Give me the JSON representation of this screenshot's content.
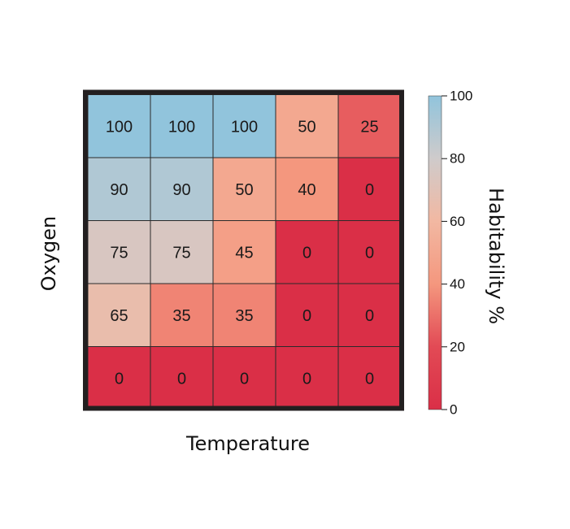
{
  "chart_data": {
    "type": "heatmap",
    "xlabel": "Temperature",
    "ylabel": "Oxygen",
    "colorbar": {
      "label": "Habitability %",
      "ticks": [
        "0",
        "20",
        "40",
        "60",
        "80",
        "100"
      ],
      "range": [
        0,
        100
      ],
      "colormap": [
        "#da2f47",
        "#f4977e",
        "#dcccc4",
        "#91c4dc"
      ]
    },
    "values": [
      [
        100,
        100,
        100,
        50,
        25
      ],
      [
        90,
        90,
        50,
        40,
        0
      ],
      [
        75,
        75,
        45,
        0,
        0
      ],
      [
        65,
        35,
        35,
        0,
        0
      ],
      [
        0,
        0,
        0,
        0,
        0
      ]
    ],
    "value_labels": [
      [
        "100",
        "100",
        "100",
        "50",
        "25"
      ],
      [
        "90",
        "90",
        "50",
        "40",
        "0"
      ],
      [
        "75",
        "75",
        "45",
        "0",
        "0"
      ],
      [
        "65",
        "35",
        "35",
        "0",
        "0"
      ],
      [
        "0",
        "0",
        "0",
        "0",
        "0"
      ]
    ],
    "grid": true,
    "legend": "right"
  }
}
